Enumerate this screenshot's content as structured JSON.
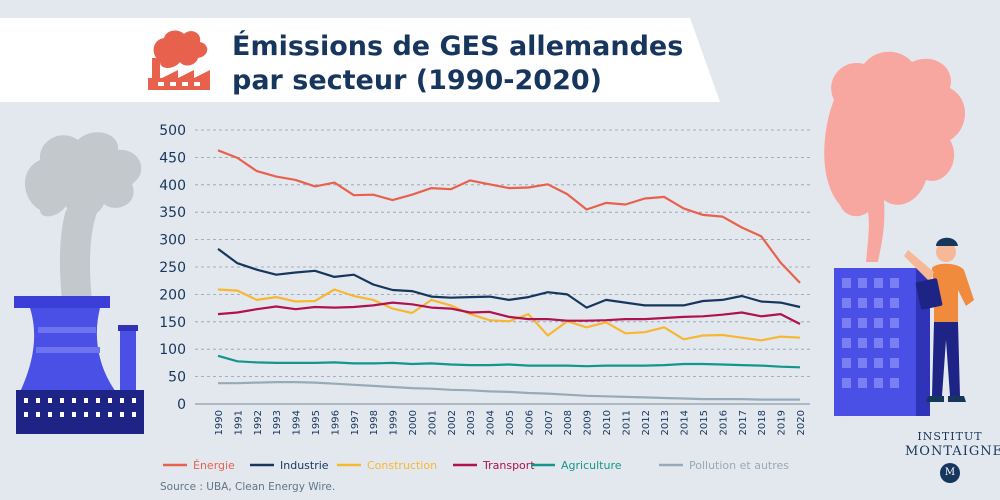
{
  "title": {
    "line1": "Émissions de GES allemandes",
    "line2": "par secteur (1990-2020)"
  },
  "source": "Source : UBA, Clean Energy Wire.",
  "brand": {
    "line1": "INSTITUT",
    "line2": "MONTAIGNE",
    "mark": "M"
  },
  "icons": [
    "factory-icon",
    "cooling-tower-illustration",
    "person-with-clipboard-illustration",
    "building-illustration",
    "smoke-cloud-illustration"
  ],
  "colors": {
    "background": "#e3e8ee",
    "title": "#17365d",
    "energie": "#e8614d",
    "industrie": "#17365d",
    "construction": "#f7b733",
    "transport": "#b0124f",
    "agriculture": "#13968c",
    "pollution": "#98aab8"
  },
  "chart_data": {
    "type": "line",
    "title": "Émissions de GES allemandes par secteur (1990-2020)",
    "xlabel": "",
    "ylabel": "",
    "ylim": [
      0,
      500
    ],
    "yticks": [
      0,
      50,
      100,
      150,
      200,
      250,
      300,
      350,
      400,
      450,
      500
    ],
    "grid": true,
    "legend_position": "bottom",
    "x": [
      "1990",
      "1991",
      "1992",
      "1993",
      "1994",
      "1995",
      "1996",
      "1997",
      "1998",
      "1999",
      "2000",
      "2001",
      "2002",
      "2003",
      "2004",
      "2005",
      "2006",
      "2007",
      "2008",
      "2009",
      "2010",
      "2011",
      "2012",
      "2013",
      "2014",
      "2015",
      "2016",
      "2017",
      "2018",
      "2019",
      "2020"
    ],
    "series": [
      {
        "name": "Énergie",
        "color": "#e8614d",
        "values": [
          463,
          449,
          425,
          415,
          409,
          397,
          404,
          381,
          382,
          372,
          382,
          394,
          392,
          408,
          401,
          394,
          395,
          401,
          383,
          355,
          367,
          364,
          375,
          378,
          357,
          345,
          342,
          322,
          306,
          258,
          221
        ]
      },
      {
        "name": "Industrie",
        "color": "#17365d",
        "values": [
          283,
          257,
          245,
          236,
          240,
          243,
          232,
          236,
          218,
          208,
          206,
          196,
          194,
          195,
          196,
          190,
          195,
          204,
          200,
          176,
          190,
          185,
          180,
          180,
          180,
          188,
          190,
          197,
          187,
          185,
          177
        ]
      },
      {
        "name": "Construction",
        "color": "#f7b733",
        "values": [
          209,
          207,
          190,
          195,
          187,
          188,
          209,
          197,
          190,
          174,
          166,
          190,
          180,
          164,
          153,
          151,
          164,
          125,
          151,
          140,
          149,
          129,
          131,
          140,
          118,
          125,
          126,
          121,
          116,
          123,
          121
        ]
      },
      {
        "name": "Transport",
        "color": "#b0124f",
        "values": [
          164,
          167,
          173,
          178,
          173,
          177,
          176,
          177,
          180,
          185,
          182,
          176,
          174,
          167,
          168,
          159,
          155,
          155,
          152,
          152,
          153,
          155,
          155,
          157,
          159,
          160,
          163,
          167,
          160,
          164,
          146
        ]
      },
      {
        "name": "Agriculture",
        "color": "#13968c",
        "values": [
          88,
          78,
          76,
          75,
          75,
          75,
          76,
          74,
          74,
          75,
          73,
          74,
          72,
          71,
          71,
          72,
          70,
          70,
          70,
          69,
          70,
          70,
          70,
          71,
          73,
          73,
          72,
          71,
          70,
          68,
          67
        ]
      },
      {
        "name": "Pollution et autres",
        "color": "#98aab8",
        "values": [
          38,
          38,
          39,
          40,
          40,
          39,
          37,
          35,
          33,
          31,
          29,
          28,
          26,
          25,
          23,
          22,
          20,
          19,
          17,
          15,
          14,
          13,
          12,
          11,
          10,
          9,
          9,
          9,
          8,
          8,
          8
        ]
      }
    ]
  }
}
